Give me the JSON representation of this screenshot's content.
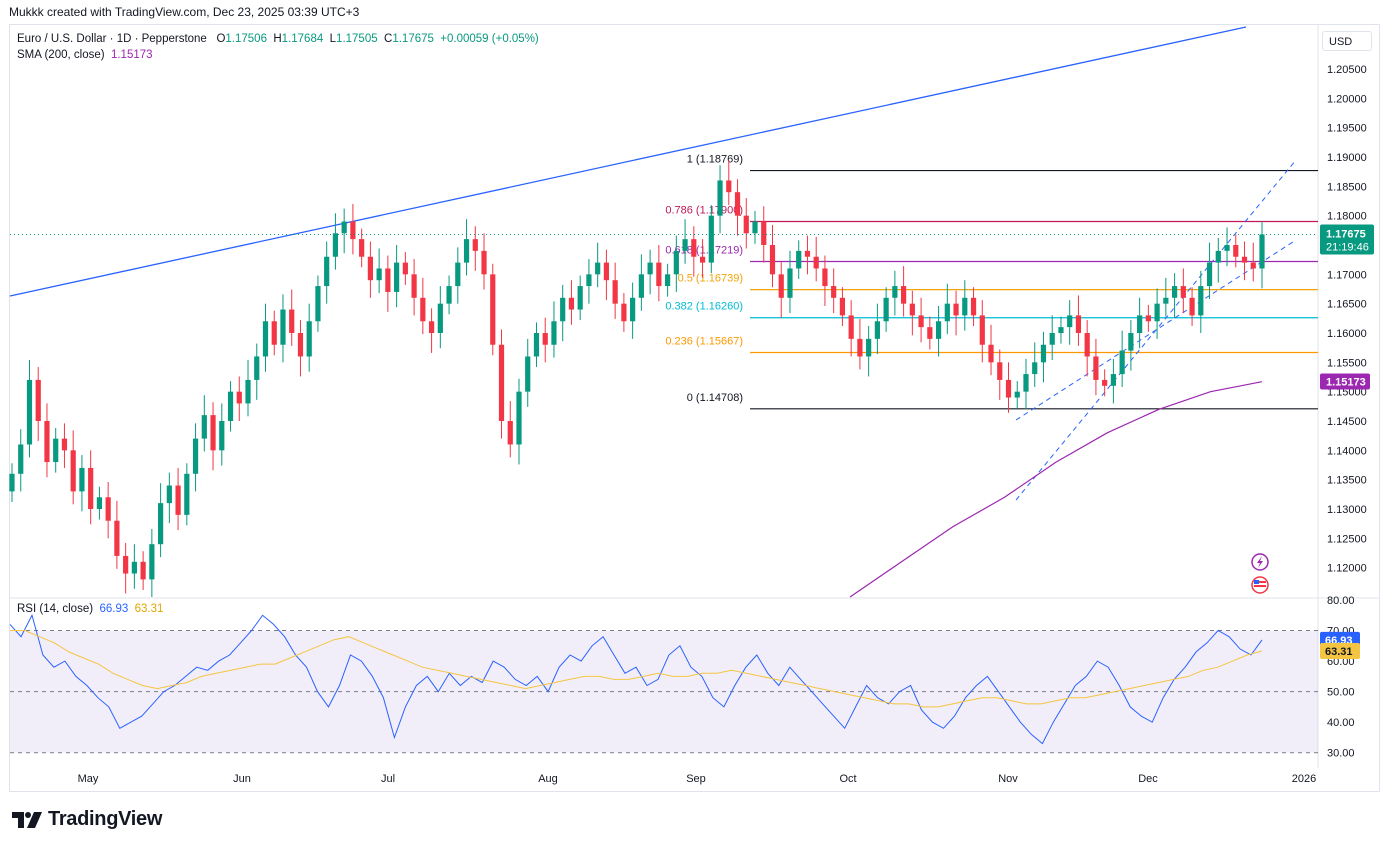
{
  "header": {
    "credit": "Mukkk created with TradingView.com, Dec 23, 2025 03:39 UTC+3",
    "symbol": "Euro / U.S. Dollar · 1D · Pepperstone",
    "o_label": "O",
    "o": "1.17506",
    "h_label": "H",
    "h": "1.17684",
    "l_label": "L",
    "l": "1.17505",
    "c_label": "C",
    "c": "1.17675",
    "change": "+0.00059 (+0.05%)",
    "sma_label": "SMA (200, close)",
    "sma_value": "1.15173",
    "currency": "USD"
  },
  "rsi_legend": {
    "label": "RSI (14, close)",
    "rsi": "66.93",
    "ma": "63.31"
  },
  "badges": {
    "price": "1.17675",
    "countdown": "21:19:46",
    "sma": "1.15173",
    "rsi": "66.93",
    "rsi_ma": "63.31"
  },
  "colors": {
    "up": "#089981",
    "down": "#f23645",
    "sma": "#9c27b0",
    "trend": "#2962ff",
    "rsi": "#2962ff",
    "rsi_ma": "#f4c542"
  },
  "brand": "TradingView",
  "chart_data": [
    {
      "type": "candlestick",
      "title": "Euro / U.S. Dollar · 1D · Pepperstone",
      "ylim": [
        1.115,
        1.2125
      ],
      "y_ticks": [
        "1.20500",
        "1.20000",
        "1.19500",
        "1.19000",
        "1.18500",
        "1.18000",
        "1.17500",
        "1.17000",
        "1.16500",
        "1.16000",
        "1.15500",
        "1.15000",
        "1.14500",
        "1.14000",
        "1.13500",
        "1.13000",
        "1.12500",
        "1.12000"
      ],
      "x_ticks": [
        "May",
        "Jun",
        "Jul",
        "Aug",
        "Sep",
        "Oct",
        "Nov",
        "Dec",
        "2026"
      ],
      "candles_close_path": [
        1.136,
        1.141,
        1.152,
        1.145,
        1.138,
        1.142,
        1.14,
        1.133,
        1.137,
        1.13,
        1.132,
        1.128,
        1.122,
        1.119,
        1.121,
        1.118,
        1.124,
        1.131,
        1.134,
        1.129,
        1.136,
        1.142,
        1.146,
        1.14,
        1.145,
        1.15,
        1.148,
        1.152,
        1.156,
        1.162,
        1.158,
        1.164,
        1.16,
        1.156,
        1.162,
        1.168,
        1.173,
        1.177,
        1.179,
        1.176,
        1.173,
        1.169,
        1.171,
        1.167,
        1.172,
        1.17,
        1.166,
        1.162,
        1.16,
        1.165,
        1.168,
        1.172,
        1.176,
        1.174,
        1.17,
        1.158,
        1.145,
        1.141,
        1.15,
        1.156,
        1.16,
        1.158,
        1.162,
        1.166,
        1.164,
        1.168,
        1.17,
        1.172,
        1.169,
        1.165,
        1.162,
        1.166,
        1.17,
        1.172,
        1.168,
        1.17,
        1.174,
        1.176,
        1.173,
        1.172,
        1.18,
        1.186,
        1.184,
        1.18,
        1.177,
        1.179,
        1.175,
        1.17,
        1.166,
        1.171,
        1.174,
        1.173,
        1.171,
        1.168,
        1.166,
        1.163,
        1.159,
        1.156,
        1.159,
        1.162,
        1.166,
        1.168,
        1.165,
        1.163,
        1.161,
        1.159,
        1.162,
        1.165,
        1.163,
        1.166,
        1.163,
        1.158,
        1.155,
        1.152,
        1.149,
        1.15,
        1.153,
        1.155,
        1.158,
        1.16,
        1.161,
        1.163,
        1.16,
        1.156,
        1.152,
        1.151,
        1.153,
        1.157,
        1.16,
        1.163,
        1.162,
        1.165,
        1.166,
        1.168,
        1.166,
        1.163,
        1.168,
        1.172,
        1.174,
        1.175,
        1.173,
        1.172,
        1.171,
        1.1768
      ],
      "fib_levels": [
        {
          "label": "1 (1.18769)",
          "value": 1.18769,
          "color": "#131722"
        },
        {
          "label": "0.786 (1.17900)",
          "value": 1.179,
          "color": "#c2185b"
        },
        {
          "label": "0.618 (1.17219)",
          "value": 1.17219,
          "color": "#9c27b0"
        },
        {
          "label": "0.5 (1.16739)",
          "value": 1.16739,
          "color": "#f0a30a"
        },
        {
          "label": "0.382 (1.16260)",
          "value": 1.1626,
          "color": "#00bcd4"
        },
        {
          "label": "0.236 (1.15667)",
          "value": 1.15667,
          "color": "#ff9800"
        },
        {
          "label": "0 (1.14708)",
          "value": 1.14708,
          "color": "#131722"
        }
      ],
      "sma200": [
        1.115,
        1.121,
        1.127,
        1.132,
        1.138,
        1.143,
        1.147,
        1.15,
        1.1517
      ]
    },
    {
      "type": "line",
      "title": "RSI (14, close)",
      "ylim": [
        25,
        80
      ],
      "y_ticks": [
        "80.00",
        "70.00",
        "60.00",
        "50.00",
        "40.00",
        "30.00"
      ],
      "bands": [
        70,
        50,
        30
      ],
      "rsi": [
        72,
        68,
        75,
        62,
        58,
        60,
        55,
        52,
        48,
        45,
        38,
        40,
        42,
        46,
        50,
        52,
        55,
        58,
        57,
        60,
        62,
        66,
        70,
        75,
        72,
        68,
        62,
        58,
        50,
        45,
        52,
        62,
        60,
        55,
        48,
        35,
        45,
        52,
        55,
        50,
        56,
        52,
        55,
        53,
        60,
        58,
        54,
        52,
        55,
        50,
        58,
        62,
        60,
        65,
        68,
        62,
        56,
        58,
        52,
        54,
        62,
        65,
        58,
        55,
        48,
        45,
        52,
        58,
        62,
        56,
        52,
        58,
        54,
        50,
        46,
        42,
        38,
        45,
        52,
        48,
        46,
        50,
        52,
        44,
        40,
        38,
        42,
        48,
        52,
        55,
        50,
        45,
        40,
        36,
        33,
        40,
        46,
        52,
        55,
        60,
        58,
        52,
        45,
        42,
        40,
        48,
        54,
        58,
        63,
        66,
        70,
        68,
        64,
        62,
        66.93
      ],
      "rsi_ma": [
        70,
        70,
        68,
        66,
        63,
        61,
        59,
        56,
        54,
        52,
        51,
        52,
        53,
        55,
        56,
        57,
        58,
        59,
        59,
        61,
        63,
        65,
        67,
        68,
        66,
        64,
        62,
        60,
        58,
        57,
        56,
        55,
        54,
        53,
        52,
        51,
        52,
        53,
        54,
        55,
        55,
        54,
        54,
        55,
        56,
        55,
        55,
        56,
        56,
        57,
        56,
        55,
        54,
        53,
        52,
        51,
        50,
        49,
        48,
        47,
        46,
        46,
        45,
        45,
        46,
        47,
        48,
        48,
        47,
        46,
        46,
        47,
        48,
        48,
        49,
        50,
        51,
        52,
        53,
        54,
        55,
        57,
        58,
        60,
        62,
        63.31
      ]
    }
  ]
}
